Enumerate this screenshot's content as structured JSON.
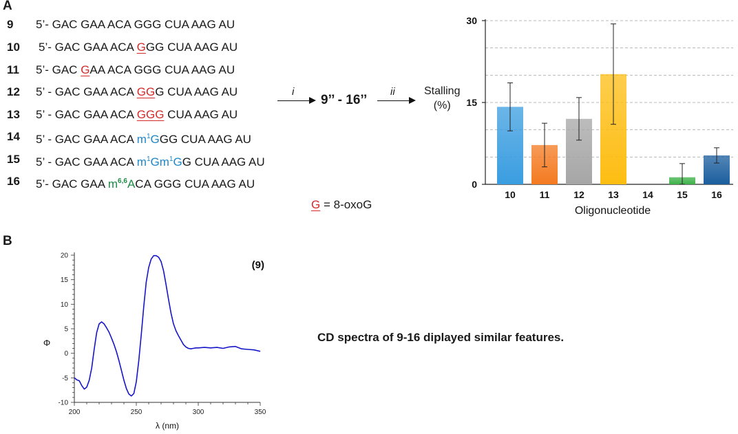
{
  "panels": {
    "a": "A",
    "b": "B"
  },
  "sequences": [
    {
      "id": "9",
      "parts": [
        {
          "t": "5’- GAC GAA ACA GGG CUA AAG AU",
          "c": ""
        }
      ]
    },
    {
      "id": "10",
      "parts": [
        {
          "t": "5’- GAC GAA ACA ",
          "c": ""
        },
        {
          "t": "G",
          "c": "red"
        },
        {
          "t": "GG CUA AAG AU",
          "c": ""
        }
      ]
    },
    {
      "id": "11",
      "parts": [
        {
          "t": "5’- GAC ",
          "c": ""
        },
        {
          "t": "G",
          "c": "red"
        },
        {
          "t": "AA ACA GGG CUA AAG AU",
          "c": ""
        }
      ]
    },
    {
      "id": "12",
      "parts": [
        {
          "t": "5’ - GAC GAA ACA ",
          "c": ""
        },
        {
          "t": "GG",
          "c": "red"
        },
        {
          "t": "G CUA AAG AU",
          "c": ""
        }
      ]
    },
    {
      "id": "13",
      "parts": [
        {
          "t": "5’ - GAC GAA ACA ",
          "c": ""
        },
        {
          "t": "GGG",
          "c": "red"
        },
        {
          "t": " CUA AAG AU",
          "c": ""
        }
      ]
    },
    {
      "id": "14",
      "parts": [
        {
          "t": "5’ - GAC GAA ACA ",
          "c": ""
        },
        {
          "t": "m",
          "c": "blue"
        },
        {
          "t": "1",
          "c": "blue sup"
        },
        {
          "t": "G",
          "c": "blue"
        },
        {
          "t": "GG CUA AAG AU",
          "c": ""
        }
      ]
    },
    {
      "id": "15",
      "parts": [
        {
          "t": "5’ - GAC GAA ACA ",
          "c": ""
        },
        {
          "t": "m",
          "c": "blue"
        },
        {
          "t": "1",
          "c": "blue sup"
        },
        {
          "t": "Gm",
          "c": "blue"
        },
        {
          "t": "1",
          "c": "blue sup"
        },
        {
          "t": "G",
          "c": "blue"
        },
        {
          "t": "G CUA AAG AU",
          "c": ""
        }
      ]
    },
    {
      "id": "16",
      "parts": [
        {
          "t": "5’- GAC GAA ",
          "c": ""
        },
        {
          "t": "m",
          "c": "green"
        },
        {
          "t": "6,6",
          "c": "green sup bold"
        },
        {
          "t": "A",
          "c": "green"
        },
        {
          "t": "CA GGG CUA AAG AU",
          "c": ""
        }
      ]
    }
  ],
  "legend": {
    "symbol": "G",
    "text": " = 8-oxoG"
  },
  "scheme": {
    "step1": "i",
    "product": "9’’ - 16’’",
    "step2": "ii",
    "ylabel_line1": "Stalling",
    "ylabel_line2": "(%)"
  },
  "colors": {
    "red": "#d42a2a",
    "blue": "#1f86c8",
    "green": "#1e8a47",
    "cd_line": "#1515c8",
    "bars": [
      "#3a9de0",
      "#f47a20",
      "#a6a6a6",
      "#fdbd12",
      "#cccccc",
      "#3fb24a",
      "#1b5e9e"
    ]
  },
  "cd_caption": "CD spectra of 9-16 diplayed similar features.",
  "chart_data": [
    {
      "type": "bar",
      "title": "",
      "xlabel": "Oligonucleotide",
      "ylabel": "Stalling (%)",
      "ylim": [
        0,
        30
      ],
      "yticks": [
        "0",
        "15",
        "30"
      ],
      "categories": [
        "10",
        "11",
        "12",
        "13",
        "14",
        "15",
        "16"
      ],
      "values": [
        14.2,
        7.2,
        12.0,
        20.2,
        0,
        1.3,
        5.3
      ],
      "error": [
        4.4,
        4.0,
        3.9,
        9.2,
        0,
        2.5,
        1.4
      ],
      "grid": "dashed horizontal"
    },
    {
      "type": "line",
      "title": "(9)",
      "xlabel": "λ (nm)",
      "ylabel": "Φ",
      "xlim": [
        200,
        350
      ],
      "ylim": [
        -10,
        20
      ],
      "xticks": [
        "200",
        "250",
        "300",
        "350"
      ],
      "yticks": [
        "-10",
        "-5",
        "0",
        "5",
        "10",
        "15",
        "20"
      ],
      "x": [
        200,
        202,
        204,
        206,
        208,
        210,
        212,
        214,
        216,
        218,
        220,
        222,
        224,
        226,
        228,
        230,
        232,
        234,
        236,
        238,
        240,
        242,
        244,
        246,
        248,
        250,
        252,
        254,
        256,
        258,
        260,
        262,
        264,
        266,
        268,
        270,
        272,
        274,
        276,
        278,
        280,
        282,
        284,
        286,
        288,
        290,
        292,
        294,
        296,
        298,
        300,
        305,
        310,
        315,
        320,
        325,
        330,
        335,
        340,
        345,
        350
      ],
      "y": [
        -5.0,
        -5.4,
        -5.6,
        -6.6,
        -7.3,
        -6.9,
        -5.5,
        -3.0,
        0.8,
        4.2,
        6.0,
        6.4,
        6.0,
        5.2,
        4.3,
        3.1,
        1.8,
        0.3,
        -1.5,
        -3.5,
        -5.5,
        -7.2,
        -8.3,
        -8.7,
        -8.2,
        -5.8,
        -1.5,
        3.8,
        9.5,
        14.5,
        17.5,
        19.2,
        19.9,
        19.9,
        19.6,
        18.7,
        16.8,
        14.0,
        11.0,
        8.2,
        6.0,
        4.6,
        3.6,
        2.7,
        1.8,
        1.3,
        1.0,
        0.9,
        1.0,
        1.1,
        1.1,
        1.2,
        1.1,
        1.2,
        1.0,
        1.3,
        1.4,
        0.9,
        0.8,
        0.7,
        0.4
      ]
    }
  ]
}
